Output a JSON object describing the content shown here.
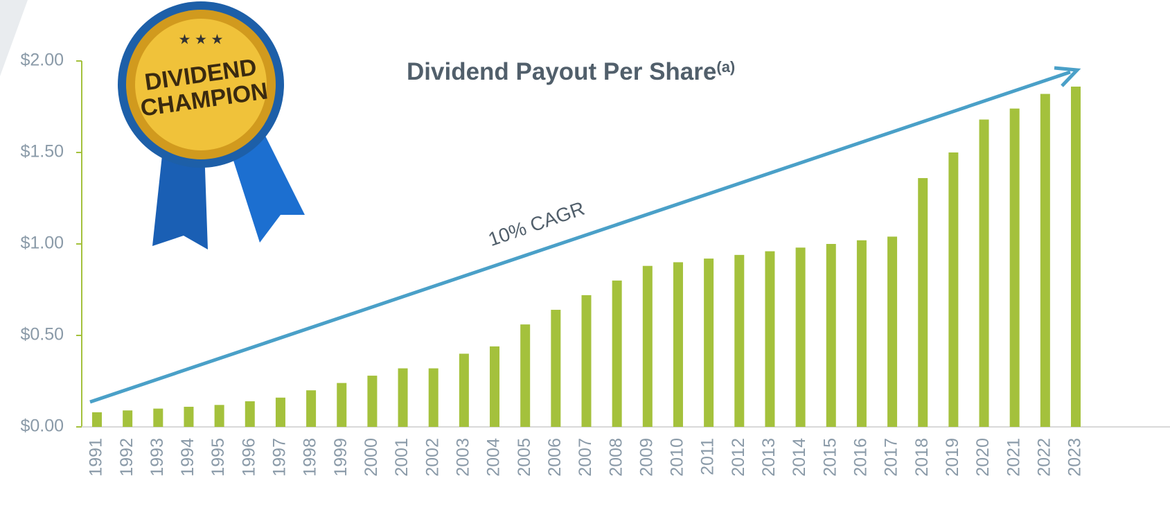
{
  "chart_data": {
    "type": "bar",
    "title": "Dividend Payout Per Share",
    "title_note": "(a)",
    "annotation": "10% CAGR",
    "badge": [
      "DIVIDEND",
      "CHAMPION"
    ],
    "categories": [
      "1991",
      "1992",
      "1993",
      "1994",
      "1995",
      "1996",
      "1997",
      "1998",
      "1999",
      "2000",
      "2001",
      "2002",
      "2003",
      "2004",
      "2005",
      "2006",
      "2007",
      "2008",
      "2009",
      "2010",
      "2011",
      "2012",
      "2013",
      "2014",
      "2015",
      "2016",
      "2017",
      "2018",
      "2019",
      "2020",
      "2021",
      "2022",
      "2023"
    ],
    "values": [
      0.08,
      0.09,
      0.1,
      0.11,
      0.12,
      0.14,
      0.16,
      0.2,
      0.24,
      0.28,
      0.32,
      0.32,
      0.4,
      0.44,
      0.56,
      0.64,
      0.72,
      0.8,
      0.88,
      0.9,
      0.92,
      0.94,
      0.96,
      0.98,
      1.0,
      1.02,
      1.04,
      1.36,
      1.5,
      1.68,
      1.74,
      1.82,
      1.86
    ],
    "color": "#a4c13c",
    "ylim": [
      0,
      2
    ],
    "yticks": [
      {
        "value": 0,
        "label": "$0.00"
      },
      {
        "value": 0.5,
        "label": "$0.50"
      },
      {
        "value": 1,
        "label": "$1.00"
      },
      {
        "value": 1.5,
        "label": "$1.50"
      },
      {
        "value": 2,
        "label": "$2.00"
      }
    ],
    "grid": false
  }
}
